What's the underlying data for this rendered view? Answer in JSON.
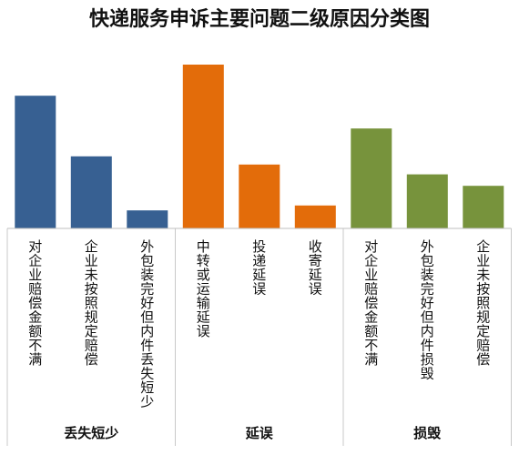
{
  "chart_data": {
    "type": "bar",
    "title": "快递服务申诉主要问题二级原因分类图",
    "xlabel": "",
    "ylabel": "",
    "ylim": [
      0,
      100
    ],
    "grid": false,
    "legend": "none",
    "groups": [
      {
        "name": "丢失短少",
        "color": "#376092",
        "categories": [
          "对企业赔偿金额不满",
          "企业未按照规定赔偿",
          "外包装完好但内件丢失短少"
        ],
        "values": [
          81,
          44,
          11
        ]
      },
      {
        "name": "延误",
        "color": "#E36C0A",
        "categories": [
          "中转或运输延误",
          "投递延误",
          "收寄延误"
        ],
        "values": [
          100,
          39,
          14
        ]
      },
      {
        "name": "损毁",
        "color": "#77933C",
        "categories": [
          "对企业赔偿金额不满",
          "外包装完好但内件损毁",
          "企业未按照规定赔偿"
        ],
        "values": [
          61,
          33,
          26
        ]
      }
    ]
  }
}
